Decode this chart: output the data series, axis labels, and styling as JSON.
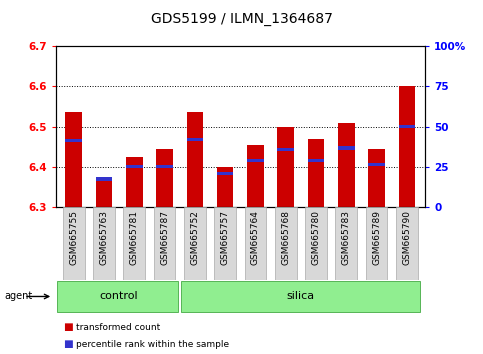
{
  "title": "GDS5199 / ILMN_1364687",
  "samples": [
    "GSM665755",
    "GSM665763",
    "GSM665781",
    "GSM665787",
    "GSM665752",
    "GSM665757",
    "GSM665764",
    "GSM665768",
    "GSM665780",
    "GSM665783",
    "GSM665789",
    "GSM665790"
  ],
  "red_values": [
    6.535,
    6.365,
    6.425,
    6.445,
    6.535,
    6.4,
    6.455,
    6.5,
    6.47,
    6.51,
    6.445,
    6.6
  ],
  "blue_values": [
    6.465,
    6.37,
    6.4,
    6.4,
    6.468,
    6.383,
    6.415,
    6.443,
    6.415,
    6.447,
    6.405,
    6.5
  ],
  "ymin": 6.3,
  "ymax": 6.7,
  "y_ticks_left": [
    6.3,
    6.4,
    6.5,
    6.6,
    6.7
  ],
  "y_ticks_right": [
    0,
    25,
    50,
    75,
    100
  ],
  "y_right_labels": [
    "0",
    "25",
    "50",
    "75",
    "100%"
  ],
  "bar_color": "#cc0000",
  "blue_color": "#3333cc",
  "n_control": 4,
  "n_silica": 8,
  "agent_label": "agent",
  "control_label": "control",
  "silica_label": "silica",
  "legend1": "transformed count",
  "legend2": "percentile rank within the sample",
  "bar_width": 0.55,
  "title_fontsize": 10,
  "tick_fontsize": 7.5,
  "xtick_fontsize": 6.5,
  "group_bg_color": "#90ee90",
  "group_edge_color": "#44aa44",
  "gray_box_color": "#d8d8d8",
  "gray_box_edge": "#aaaaaa"
}
